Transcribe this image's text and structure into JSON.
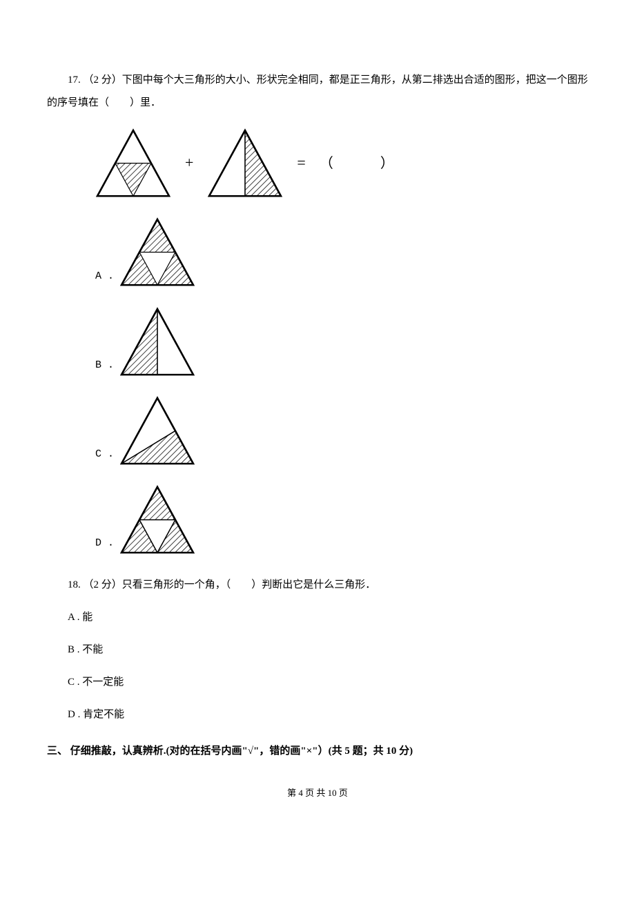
{
  "q17": {
    "text": "17. （2 分）下图中每个大三角形的大小、形状完全相同，都是正三角形，从第二排选出合适的图形，把这一个图形的序号填在（　　）里．",
    "plus": "+",
    "equals": "=",
    "lparen": "（",
    "rparen": "）",
    "optA_label": "A .",
    "optB_label": "B .",
    "optC_label": "C .",
    "optD_label": "D .",
    "figure": {
      "tri1_size": 110,
      "tri2_size": 110,
      "opt_size": 110,
      "hatch_stroke": "#000",
      "hatch_width": 1.5,
      "hatch_gap": 6,
      "outline_stroke": "#000",
      "outline_width": 2.5,
      "bg": "#fff"
    }
  },
  "q18": {
    "text": "18. （2 分）只看三角形的一个角，（　　）判断出它是什么三角形．",
    "optA": "A . 能",
    "optB": "B . 不能",
    "optC": "C . 不一定能",
    "optD": "D . 肯定不能"
  },
  "section3": {
    "title": "三、 仔细推敲，认真辨析.(对的在括号内画\"√\"，错的画\"×\"）(共 5 题；共 10 分)"
  },
  "footer": "第 4 页 共 10 页"
}
